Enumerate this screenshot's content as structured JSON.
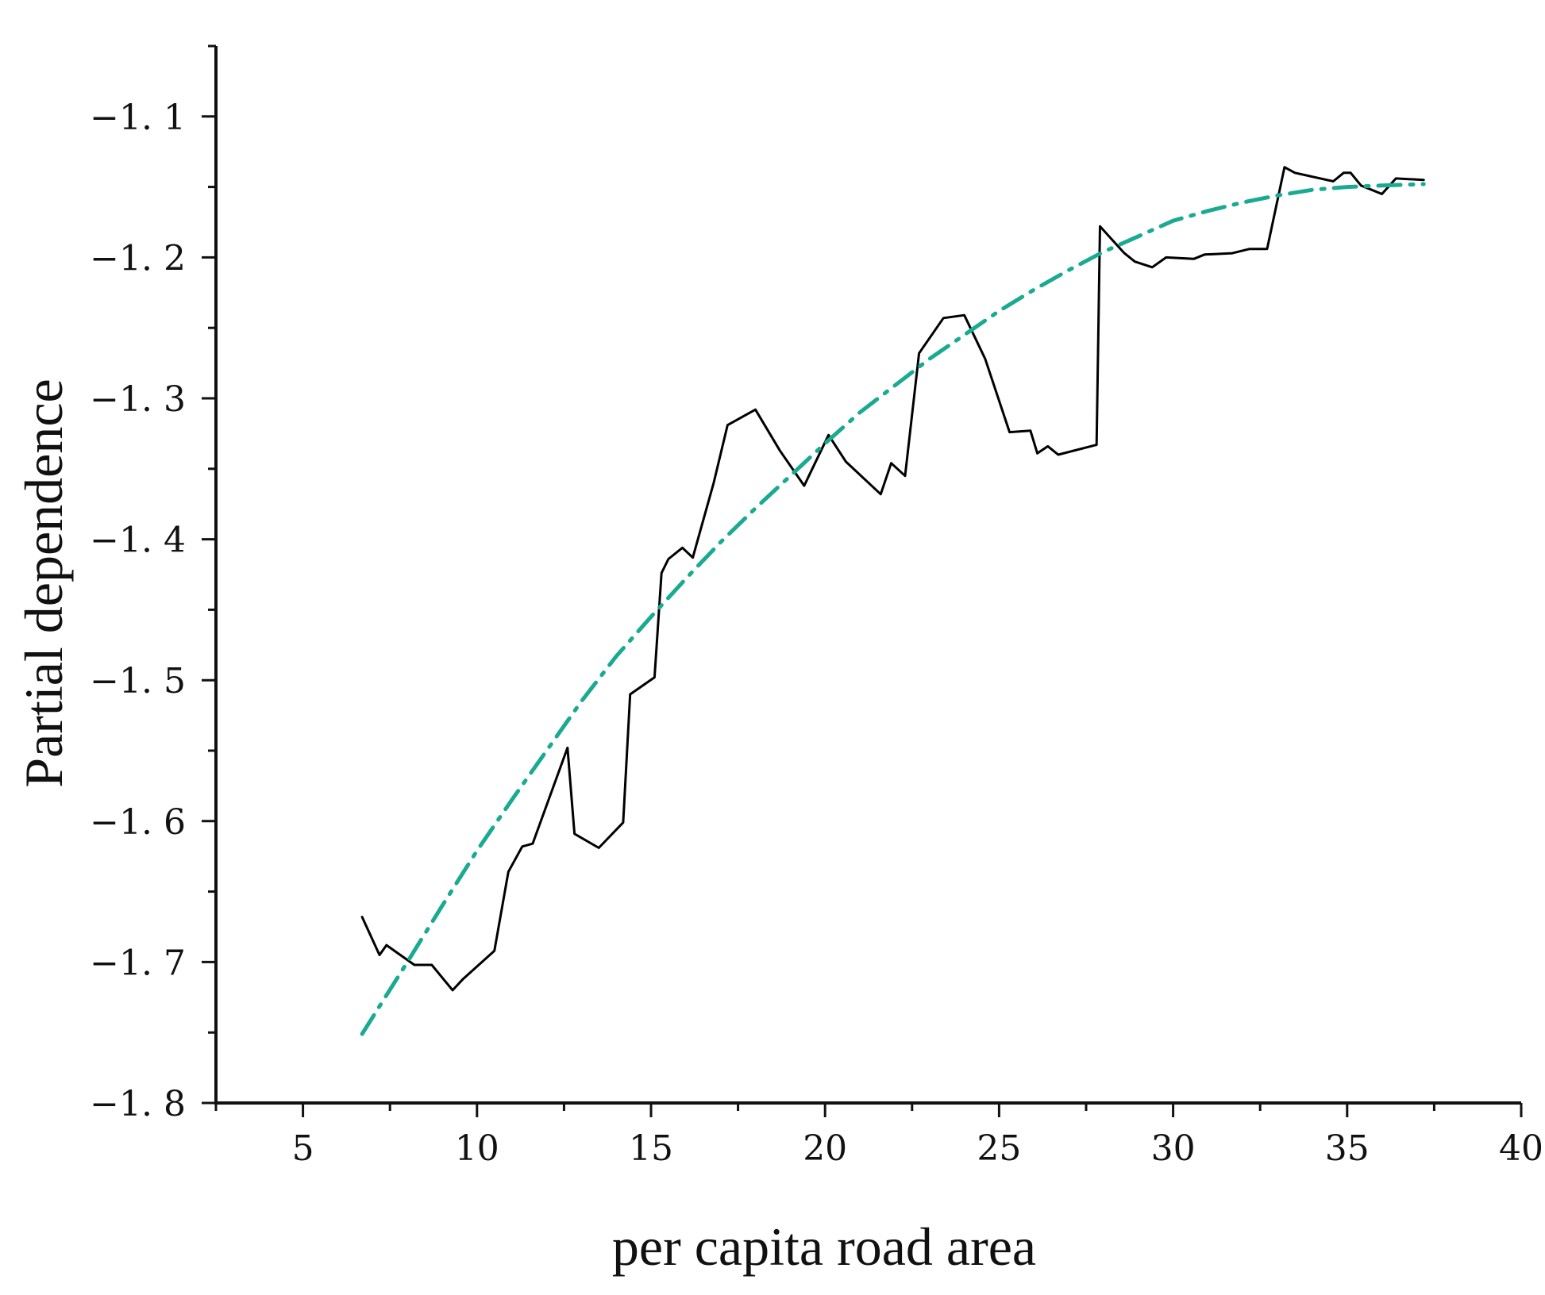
{
  "chart_data": {
    "type": "line",
    "title": "",
    "xlabel": "per capita road area",
    "ylabel": "Partial dependence",
    "xlim": [
      2.5,
      40
    ],
    "ylim": [
      -1.8,
      -1.05
    ],
    "x_ticks": [
      5,
      10,
      15,
      20,
      25,
      30,
      35,
      40
    ],
    "x_tick_labels": [
      "5",
      "10",
      "15",
      "20",
      "25",
      "30",
      "35",
      "40"
    ],
    "y_ticks": [
      -1.8,
      -1.7,
      -1.6,
      -1.5,
      -1.4,
      -1.3,
      -1.2,
      -1.1
    ],
    "y_tick_labels": [
      "−1. 8",
      "−1. 7",
      "−1. 6",
      "−1. 5",
      "−1. 4",
      "−1. 3",
      "−1. 2",
      "−1. 1"
    ],
    "grid": false,
    "legend": "none",
    "series": [
      {
        "style": "solid",
        "color": "#000000",
        "x": [
          6.7,
          7.2,
          7.4,
          8.2,
          8.7,
          9.3,
          9.6,
          10.5,
          10.9,
          11.3,
          11.6,
          12.6,
          12.8,
          13.5,
          14.2,
          14.4,
          15.1,
          15.3,
          15.5,
          15.9,
          16.2,
          16.8,
          17.2,
          18.0,
          18.7,
          19.4,
          20.1,
          20.6,
          21.6,
          21.9,
          22.3,
          22.7,
          23.4,
          24.0,
          24.6,
          25.3,
          25.9,
          26.1,
          26.4,
          26.7,
          27.8,
          27.9,
          28.6,
          28.9,
          29.4,
          29.8,
          30.6,
          30.9,
          31.7,
          32.2,
          32.7,
          33.2,
          33.5,
          34.6,
          34.9,
          35.1,
          35.4,
          36.0,
          36.4,
          37.2
        ],
        "y": [
          -1.668,
          -1.695,
          -1.688,
          -1.702,
          -1.702,
          -1.72,
          -1.712,
          -1.692,
          -1.636,
          -1.618,
          -1.616,
          -1.548,
          -1.609,
          -1.619,
          -1.601,
          -1.51,
          -1.498,
          -1.424,
          -1.414,
          -1.406,
          -1.413,
          -1.36,
          -1.319,
          -1.308,
          -1.337,
          -1.362,
          -1.326,
          -1.345,
          -1.368,
          -1.346,
          -1.355,
          -1.268,
          -1.243,
          -1.241,
          -1.272,
          -1.324,
          -1.323,
          -1.339,
          -1.334,
          -1.34,
          -1.333,
          -1.178,
          -1.197,
          -1.203,
          -1.207,
          -1.2,
          -1.201,
          -1.198,
          -1.197,
          -1.194,
          -1.194,
          -1.136,
          -1.14,
          -1.146,
          -1.14,
          -1.14,
          -1.149,
          -1.155,
          -1.144,
          -1.145
        ]
      },
      {
        "style": "dash-dot",
        "color": "#1aaa92",
        "x": [
          6.7,
          8.0,
          9.0,
          10.0,
          11.0,
          12.0,
          13.0,
          14.0,
          15.0,
          16.0,
          17.0,
          18.0,
          19.0,
          20.0,
          21.0,
          22.0,
          23.0,
          24.0,
          25.0,
          26.0,
          27.0,
          28.0,
          29.0,
          30.0,
          31.0,
          32.0,
          33.0,
          34.0,
          35.0,
          36.0,
          37.2
        ],
        "y": [
          -1.751,
          -1.7,
          -1.66,
          -1.621,
          -1.585,
          -1.55,
          -1.515,
          -1.483,
          -1.455,
          -1.428,
          -1.402,
          -1.378,
          -1.355,
          -1.332,
          -1.31,
          -1.291,
          -1.272,
          -1.255,
          -1.238,
          -1.223,
          -1.209,
          -1.196,
          -1.185,
          -1.174,
          -1.167,
          -1.161,
          -1.156,
          -1.152,
          -1.15,
          -1.149,
          -1.148
        ]
      }
    ]
  }
}
